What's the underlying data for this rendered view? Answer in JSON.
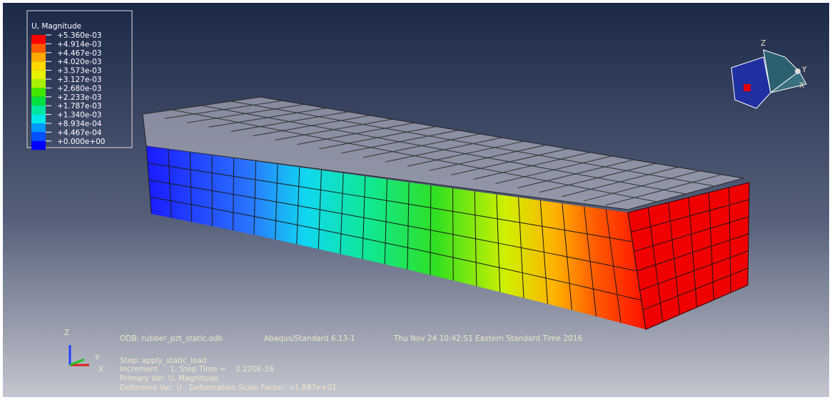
{
  "legend": {
    "title": "U, Magnitude",
    "labels": [
      "+5.360e-03",
      "+4.914e-03",
      "+4.467e-03",
      "+4.020e-03",
      "+3.573e-03",
      "+3.127e-03",
      "+2.680e-03",
      "+2.233e-03",
      "+1.787e-03",
      "+1.340e-03",
      "+8.934e-04",
      "+4.467e-04",
      "+0.000e+00"
    ],
    "colors": [
      "#ff0000",
      "#ff5a00",
      "#ffa800",
      "#ffd800",
      "#e6f000",
      "#a8f000",
      "#40e800",
      "#00e040",
      "#00e8a0",
      "#00e8e8",
      "#0098ff",
      "#0050ff",
      "#0000ff"
    ]
  },
  "info": {
    "odb": "ODB: rubber_pzt_static.odb",
    "solver": "Abaqus/Standard 6.13-1",
    "timestamp": "Thu Nov 24 10:42:51 Eastern Standard Time 2016",
    "step": "Step: apply_static_load",
    "increment": "Increment     1: Step Time =    2.220E-16",
    "primary_var": "Primary Var: U, Magnitude",
    "deformed_var": "Deformed Var: U   Deformation Scale Factor: +1.887e+01"
  },
  "triad": {
    "z": "Z",
    "y": "Y",
    "x": "X"
  },
  "view_cube": {
    "z": "Z",
    "y": "Y",
    "x": "X"
  }
}
